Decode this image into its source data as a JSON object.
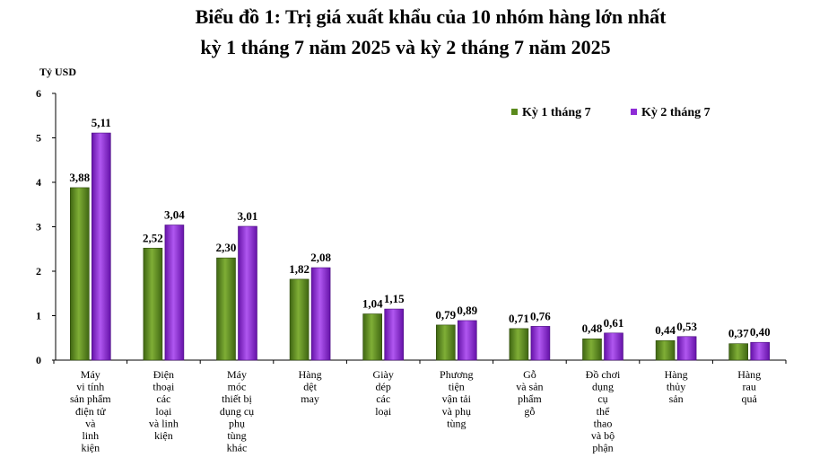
{
  "chart_data": {
    "type": "bar",
    "title": "Biểu đồ 1: Trị giá xuất khẩu của 10 nhóm hàng lớn nhất",
    "subtitle": "kỳ 1 tháng 7 năm 2025 và kỳ 2 tháng 7 năm 2025",
    "ylabel": "Tỷ USD",
    "xlabel": "",
    "ylim": [
      0,
      6
    ],
    "yticks": [
      0,
      1,
      2,
      3,
      4,
      5,
      6
    ],
    "grid": false,
    "legend_position": "top-right",
    "categories": [
      [
        "Máy",
        "vi tính",
        "sản phẩm",
        "điện tử",
        "và",
        "linh",
        "kiện"
      ],
      [
        "Điện",
        "thoại",
        "các",
        "loại",
        "và linh",
        "kiện"
      ],
      [
        "Máy",
        "móc",
        "thiết bị",
        "dụng cụ",
        "phụ",
        "tùng",
        "khác"
      ],
      [
        "Hàng",
        "dệt",
        "may"
      ],
      [
        "Giày",
        "dép",
        "các",
        "loại"
      ],
      [
        "Phương",
        "tiện",
        "vận tải",
        "và phụ",
        "tùng"
      ],
      [
        "Gỗ",
        "và sản",
        "phẩm",
        "gỗ"
      ],
      [
        "Đồ chơi",
        "dụng",
        "cụ",
        "thể",
        "thao",
        "và bộ",
        "phận"
      ],
      [
        "Hàng",
        "thủy",
        "sản"
      ],
      [
        "Hàng",
        "rau",
        "quả"
      ]
    ],
    "series": [
      {
        "name": "Kỳ 1 tháng 7",
        "color": "#5a8a1c",
        "values": [
          3.88,
          2.52,
          2.3,
          1.82,
          1.04,
          0.79,
          0.71,
          0.48,
          0.44,
          0.37
        ],
        "labels": [
          "3,88",
          "2,52",
          "2,30",
          "1,82",
          "1,04",
          "0,79",
          "0,71",
          "0,48",
          "0,44",
          "0,37"
        ]
      },
      {
        "name": "Kỳ 2 tháng 7",
        "color": "#8e2cd6",
        "values": [
          5.11,
          3.04,
          3.01,
          2.08,
          1.15,
          0.89,
          0.76,
          0.61,
          0.53,
          0.4
        ],
        "labels": [
          "5,11",
          "3,04",
          "3,01",
          "2,08",
          "1,15",
          "0,89",
          "0,76",
          "0,61",
          "0,53",
          "0,40"
        ]
      }
    ]
  }
}
